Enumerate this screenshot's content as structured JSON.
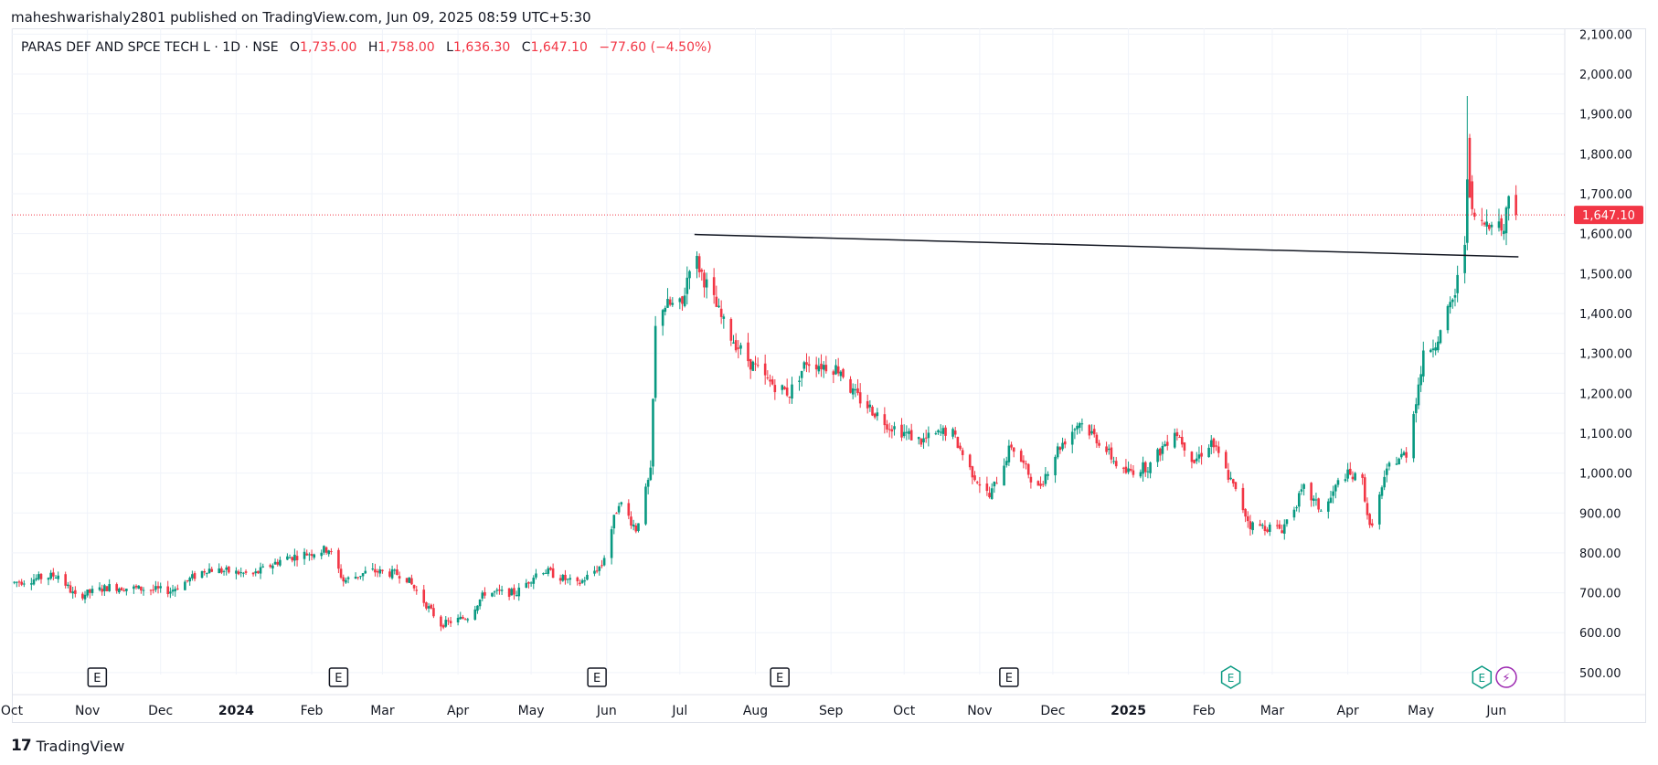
{
  "header": {
    "published_text": "maheshwarishaly2801 published on TradingView.com, Jun 09, 2025 08:59 UTC+5:30"
  },
  "legend": {
    "symbol": "PARAS DEF AND SPCE TECH L · 1D · NSE",
    "open_label": "O",
    "open": "1,735.00",
    "high_label": "H",
    "high": "1,758.00",
    "low_label": "L",
    "low": "1,636.30",
    "close_label": "C",
    "close": "1,647.10",
    "change": "−77.60 (−4.50%)"
  },
  "branding": {
    "name": "TradingView",
    "logo": "17"
  },
  "colors": {
    "up": "#089981",
    "down": "#f23645",
    "grid": "#f0f3fa",
    "trendline": "#131722",
    "price_line": "#f23645"
  },
  "chart_data": {
    "type": "candlestick",
    "ylim": [
      470,
      2110
    ],
    "y_ticks": [
      500,
      600,
      700,
      800,
      900,
      1000,
      1100,
      1200,
      1300,
      1400,
      1500,
      1600,
      1700,
      1800,
      1900,
      2000,
      2100
    ],
    "y_tick_labels": [
      "500.00",
      "600.00",
      "700.00",
      "800.00",
      "900.00",
      "1,000.00",
      "1,100.00",
      "1,200.00",
      "1,300.00",
      "1,400.00",
      "1,500.00",
      "1,600.00",
      "1,700.00",
      "1,800.00",
      "1,900.00",
      "2,000.00",
      "2,100.00"
    ],
    "x_start": "2023-10-01",
    "x_end": "2025-06-17",
    "x_ticks": [
      {
        "date": "2023-10-01",
        "label": "Oct",
        "bold": false
      },
      {
        "date": "2023-11-01",
        "label": "Nov",
        "bold": false
      },
      {
        "date": "2023-12-01",
        "label": "Dec",
        "bold": false
      },
      {
        "date": "2024-01-01",
        "label": "2024",
        "bold": true
      },
      {
        "date": "2024-02-01",
        "label": "Feb",
        "bold": false
      },
      {
        "date": "2024-03-01",
        "label": "Mar",
        "bold": false
      },
      {
        "date": "2024-04-01",
        "label": "Apr",
        "bold": false
      },
      {
        "date": "2024-05-01",
        "label": "May",
        "bold": false
      },
      {
        "date": "2024-06-01",
        "label": "Jun",
        "bold": false
      },
      {
        "date": "2024-07-01",
        "label": "Jul",
        "bold": false
      },
      {
        "date": "2024-08-01",
        "label": "Aug",
        "bold": false
      },
      {
        "date": "2024-09-01",
        "label": "Sep",
        "bold": false
      },
      {
        "date": "2024-10-01",
        "label": "Oct",
        "bold": false
      },
      {
        "date": "2024-11-01",
        "label": "Nov",
        "bold": false
      },
      {
        "date": "2024-12-01",
        "label": "Dec",
        "bold": false
      },
      {
        "date": "2025-01-01",
        "label": "2025",
        "bold": true
      },
      {
        "date": "2025-02-01",
        "label": "Feb",
        "bold": false
      },
      {
        "date": "2025-03-01",
        "label": "Mar",
        "bold": false
      },
      {
        "date": "2025-04-01",
        "label": "Apr",
        "bold": false
      },
      {
        "date": "2025-05-01",
        "label": "May",
        "bold": false
      },
      {
        "date": "2025-06-01",
        "label": "Jun",
        "bold": false
      }
    ],
    "price_anchors": [
      [
        "2023-10-01",
        725
      ],
      [
        "2023-10-20",
        745
      ],
      [
        "2023-10-27",
        690
      ],
      [
        "2023-11-10",
        715
      ],
      [
        "2023-12-05",
        705
      ],
      [
        "2023-12-20",
        760
      ],
      [
        "2024-01-08",
        745
      ],
      [
        "2024-01-20",
        785
      ],
      [
        "2024-02-08",
        810
      ],
      [
        "2024-02-14",
        730
      ],
      [
        "2024-02-25",
        755
      ],
      [
        "2024-03-10",
        745
      ],
      [
        "2024-03-25",
        620
      ],
      [
        "2024-04-05",
        640
      ],
      [
        "2024-04-12",
        700
      ],
      [
        "2024-04-25",
        700
      ],
      [
        "2024-05-05",
        760
      ],
      [
        "2024-05-20",
        720
      ],
      [
        "2024-05-30",
        770
      ],
      [
        "2024-06-06",
        930
      ],
      [
        "2024-06-13",
        860
      ],
      [
        "2024-06-19",
        1000
      ],
      [
        "2024-06-21",
        1360
      ],
      [
        "2024-06-24",
        1420
      ],
      [
        "2024-07-02",
        1420
      ],
      [
        "2024-07-06",
        1560
      ],
      [
        "2024-07-10",
        1500
      ],
      [
        "2024-07-20",
        1360
      ],
      [
        "2024-07-28",
        1290
      ],
      [
        "2024-08-06",
        1230
      ],
      [
        "2024-08-15",
        1200
      ],
      [
        "2024-08-22",
        1280
      ],
      [
        "2024-09-05",
        1260
      ],
      [
        "2024-09-10",
        1200
      ],
      [
        "2024-09-25",
        1120
      ],
      [
        "2024-10-08",
        1080
      ],
      [
        "2024-10-20",
        1110
      ],
      [
        "2024-10-28",
        1010
      ],
      [
        "2024-11-05",
        940
      ],
      [
        "2024-11-14",
        1070
      ],
      [
        "2024-11-25",
        960
      ],
      [
        "2024-12-03",
        1060
      ],
      [
        "2024-12-12",
        1130
      ],
      [
        "2024-12-20",
        1080
      ],
      [
        "2024-12-30",
        1000
      ],
      [
        "2025-01-10",
        1020
      ],
      [
        "2025-01-20",
        1110
      ],
      [
        "2025-01-28",
        1030
      ],
      [
        "2025-02-04",
        1080
      ],
      [
        "2025-02-12",
        980
      ],
      [
        "2025-02-20",
        870
      ],
      [
        "2025-03-05",
        860
      ],
      [
        "2025-03-14",
        960
      ],
      [
        "2025-03-22",
        900
      ],
      [
        "2025-03-30",
        1000
      ],
      [
        "2025-04-07",
        980
      ],
      [
        "2025-04-10",
        860
      ],
      [
        "2025-04-18",
        1020
      ],
      [
        "2025-04-25",
        1050
      ],
      [
        "2025-05-02",
        1290
      ],
      [
        "2025-05-09",
        1350
      ],
      [
        "2025-05-15",
        1450
      ],
      [
        "2025-05-19",
        1580
      ],
      [
        "2025-05-20",
        1760
      ],
      [
        "2025-05-22",
        1650
      ],
      [
        "2025-05-26",
        1620
      ],
      [
        "2025-05-30",
        1640
      ],
      [
        "2025-06-04",
        1610
      ],
      [
        "2025-06-06",
        1700
      ]
    ],
    "last_close": 1647.1,
    "last_price_label": "1,647.10",
    "trendline": {
      "x1": "2024-07-07",
      "y1": 1598,
      "x2": "2025-06-10",
      "y2": 1542
    },
    "event_markers": [
      {
        "date": "2023-11-05",
        "label": "E",
        "kind": "earnings-past"
      },
      {
        "date": "2024-02-12",
        "label": "E",
        "kind": "earnings-past"
      },
      {
        "date": "2024-05-28",
        "label": "E",
        "kind": "earnings-past"
      },
      {
        "date": "2024-08-11",
        "label": "E",
        "kind": "earnings-past"
      },
      {
        "date": "2024-11-13",
        "label": "E",
        "kind": "earnings-past"
      },
      {
        "date": "2025-02-12",
        "label": "E",
        "kind": "earnings-upcoming"
      },
      {
        "date": "2025-05-26",
        "label": "E",
        "kind": "earnings-upcoming"
      },
      {
        "date": "2025-06-05",
        "label": "⚡",
        "kind": "event"
      }
    ]
  }
}
